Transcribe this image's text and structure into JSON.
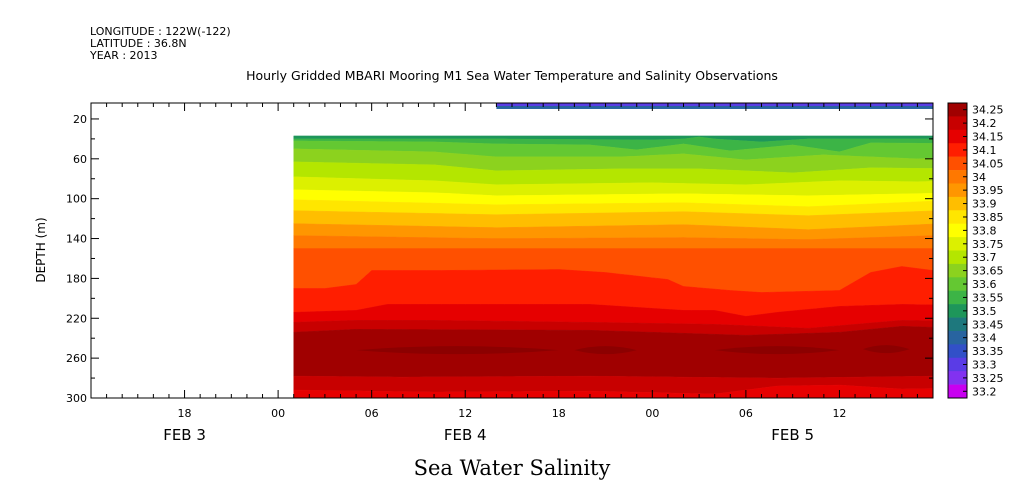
{
  "header": {
    "longitude": "LONGITUDE : 122W(-122)",
    "latitude": "LATITUDE : 36.8N",
    "year": "YEAR : 2013"
  },
  "chart_data": {
    "type": "heatmap",
    "title": "Hourly Gridded MBARI Mooring M1 Sea Water Temperature and Salinity Observations",
    "variable_name": "Sea Water Salinity",
    "ylabel": "DEPTH (m)",
    "y_ticks": [
      20,
      60,
      100,
      140,
      180,
      220,
      260,
      300
    ],
    "ylim": [
      300,
      4
    ],
    "y_reversed": true,
    "x_axis": {
      "start": "2013-02-03T12:00",
      "end": "2013-02-05T18:00",
      "tick_labels": [
        "18",
        "00",
        "06",
        "12",
        "18",
        "00",
        "06",
        "12"
      ],
      "tick_times": [
        "2013-02-03T18:00",
        "2013-02-04T00:00",
        "2013-02-04T06:00",
        "2013-02-04T12:00",
        "2013-02-04T18:00",
        "2013-02-05T00:00",
        "2013-02-05T06:00",
        "2013-02-05T12:00"
      ],
      "date_labels": [
        "FEB  3",
        "FEB  4",
        "FEB  5"
      ],
      "date_label_times": [
        "2013-02-03T18:00",
        "2013-02-04T12:00",
        "2013-02-05T09:00"
      ]
    },
    "colorbar": {
      "levels": [
        34.25,
        34.2,
        34.15,
        34.1,
        34.05,
        34,
        33.95,
        33.9,
        33.85,
        33.8,
        33.75,
        33.7,
        33.65,
        33.6,
        33.55,
        33.5,
        33.45,
        33.4,
        33.35,
        33.3,
        33.25,
        33.2
      ],
      "labels": [
        "34.25",
        "34.2",
        "34.15",
        "34.1",
        "34.05",
        "34",
        "33.95",
        "33.9",
        "33.85",
        "33.8",
        "33.75",
        "33.7",
        "33.65",
        "33.6",
        "33.55",
        "33.5",
        "33.45",
        "33.4",
        "33.35",
        "33.3",
        "33.25",
        "33.2"
      ],
      "colors": [
        "#a00000",
        "#c80000",
        "#e60000",
        "#ff1e00",
        "#ff5000",
        "#ff7800",
        "#ff9600",
        "#ffbe00",
        "#ffe600",
        "#ffff00",
        "#dcf000",
        "#b4e600",
        "#8cd21e",
        "#64c832",
        "#3cb446",
        "#1e965a",
        "#1e787d",
        "#2864a0",
        "#3250c8",
        "#5a3ce6",
        "#8232f0",
        "#c800f0"
      ]
    },
    "data_start": "2013-02-04T01:00",
    "surface_band": {
      "start": "2013-02-04T14:00",
      "end": "2013-02-05T18:00",
      "depth_range": [
        4,
        10
      ],
      "value_range": [
        33.3,
        33.45
      ]
    },
    "contour_depths": [
      {
        "boundary": "33.55",
        "values": [
          [
            1,
            40
          ],
          [
            14,
            40
          ],
          [
            24,
            41
          ],
          [
            26,
            40
          ],
          [
            27,
            38
          ],
          [
            28,
            40
          ],
          [
            31,
            43
          ],
          [
            34,
            40
          ],
          [
            41,
            40
          ],
          [
            54,
            40
          ]
        ]
      },
      {
        "boundary": "33.6",
        "values": [
          [
            1,
            42
          ],
          [
            10,
            43
          ],
          [
            14,
            45
          ],
          [
            20,
            46
          ],
          [
            23,
            51
          ],
          [
            26,
            45
          ],
          [
            29,
            52
          ],
          [
            33,
            46
          ],
          [
            36,
            53
          ],
          [
            38,
            44
          ],
          [
            48,
            45
          ],
          [
            54,
            42
          ]
        ]
      },
      {
        "boundary": "33.65",
        "values": [
          [
            1,
            50
          ],
          [
            10,
            53
          ],
          [
            14,
            58
          ],
          [
            22,
            58
          ],
          [
            26,
            55
          ],
          [
            30,
            61
          ],
          [
            35,
            56
          ],
          [
            41,
            60
          ],
          [
            48,
            56
          ],
          [
            54,
            52
          ]
        ]
      },
      {
        "boundary": "33.7",
        "values": [
          [
            1,
            63
          ],
          [
            10,
            66
          ],
          [
            14,
            72
          ],
          [
            22,
            70
          ],
          [
            27,
            70
          ],
          [
            33,
            74
          ],
          [
            38,
            69
          ],
          [
            44,
            70
          ],
          [
            48,
            66
          ],
          [
            54,
            64
          ]
        ]
      },
      {
        "boundary": "33.75",
        "values": [
          [
            1,
            78
          ],
          [
            10,
            82
          ],
          [
            14,
            86
          ],
          [
            24,
            84
          ],
          [
            30,
            86
          ],
          [
            36,
            82
          ],
          [
            41,
            83
          ],
          [
            48,
            80
          ],
          [
            54,
            78
          ]
        ]
      },
      {
        "boundary": "33.8",
        "values": [
          [
            1,
            91
          ],
          [
            10,
            94
          ],
          [
            14,
            97
          ],
          [
            26,
            95
          ],
          [
            34,
            97
          ],
          [
            44,
            94
          ],
          [
            54,
            91
          ]
        ]
      },
      {
        "boundary": "33.85",
        "values": [
          [
            1,
            101
          ],
          [
            14,
            106
          ],
          [
            26,
            104
          ],
          [
            34,
            108
          ],
          [
            44,
            101
          ],
          [
            54,
            103
          ]
        ]
      },
      {
        "boundary": "33.9",
        "values": [
          [
            1,
            112
          ],
          [
            14,
            116
          ],
          [
            26,
            113
          ],
          [
            34,
            117
          ],
          [
            44,
            111
          ],
          [
            54,
            114
          ]
        ]
      },
      {
        "boundary": "33.95",
        "values": [
          [
            1,
            125
          ],
          [
            14,
            129
          ],
          [
            26,
            126
          ],
          [
            34,
            131
          ],
          [
            44,
            124
          ],
          [
            54,
            127
          ]
        ]
      },
      {
        "boundary": "34",
        "values": [
          [
            1,
            137
          ],
          [
            14,
            140
          ],
          [
            26,
            139
          ],
          [
            34,
            141
          ],
          [
            44,
            136
          ],
          [
            54,
            138
          ]
        ]
      },
      {
        "boundary": "34.05",
        "values": [
          [
            1,
            150
          ],
          [
            20,
            150
          ],
          [
            34,
            150
          ],
          [
            54,
            150
          ]
        ]
      },
      {
        "boundary": "34.1",
        "values": [
          [
            1,
            190
          ],
          [
            3,
            190
          ],
          [
            5,
            186
          ],
          [
            6,
            172
          ],
          [
            10,
            172
          ],
          [
            18,
            171
          ],
          [
            21,
            174
          ],
          [
            25,
            181
          ],
          [
            26,
            188
          ],
          [
            29,
            192
          ],
          [
            31,
            194
          ],
          [
            36,
            192
          ],
          [
            38,
            174
          ],
          [
            40,
            168
          ],
          [
            42,
            172
          ],
          [
            44,
            171
          ],
          [
            46,
            176
          ],
          [
            47,
            176
          ],
          [
            48,
            190
          ],
          [
            50,
            190
          ],
          [
            51,
            186
          ],
          [
            54,
            180
          ]
        ]
      },
      {
        "boundary": "34.15",
        "values": [
          [
            1,
            214
          ],
          [
            5,
            212
          ],
          [
            7,
            206
          ],
          [
            14,
            206
          ],
          [
            20,
            206
          ],
          [
            26,
            212
          ],
          [
            28,
            212
          ],
          [
            30,
            218
          ],
          [
            32,
            214
          ],
          [
            36,
            208
          ],
          [
            40,
            206
          ],
          [
            44,
            207
          ],
          [
            48,
            210
          ],
          [
            50,
            214
          ],
          [
            52,
            210
          ],
          [
            54,
            212
          ]
        ]
      },
      {
        "boundary": "34.2",
        "values": [
          [
            1,
            224
          ],
          [
            5,
            222
          ],
          [
            10,
            222
          ],
          [
            20,
            224
          ],
          [
            28,
            226
          ],
          [
            34,
            230
          ],
          [
            40,
            222
          ],
          [
            48,
            224
          ],
          [
            54,
            226
          ]
        ]
      },
      {
        "boundary": "34.25",
        "values": [
          [
            1,
            234
          ],
          [
            5,
            231
          ],
          [
            20,
            232
          ],
          [
            30,
            237
          ],
          [
            36,
            234
          ],
          [
            40,
            228
          ],
          [
            48,
            232
          ],
          [
            54,
            236
          ]
        ]
      },
      {
        "boundary": "34.2 lower",
        "values": [
          [
            1,
            278
          ],
          [
            8,
            279
          ],
          [
            20,
            278
          ],
          [
            32,
            280
          ],
          [
            42,
            278
          ],
          [
            54,
            279
          ]
        ]
      },
      {
        "boundary": "34.15 lower",
        "values": [
          [
            1,
            292
          ],
          [
            10,
            294
          ],
          [
            20,
            293
          ],
          [
            28,
            296
          ],
          [
            32,
            288
          ],
          [
            36,
            287
          ],
          [
            40,
            291
          ],
          [
            48,
            289
          ],
          [
            52,
            293
          ],
          [
            54,
            289
          ]
        ]
      }
    ],
    "core_patches": [
      {
        "value": ">34.25",
        "time_range": [
          "2013-02-04T05:00",
          "2013-02-04T18:00"
        ],
        "depth": 252
      },
      {
        "value": ">34.25",
        "time_range": [
          "2013-02-04T19:00",
          "2013-02-04T23:00"
        ],
        "depth": 252
      },
      {
        "value": ">34.25",
        "time_range": [
          "2013-02-05T04:00",
          "2013-02-05T12:00"
        ],
        "depth": 252
      },
      {
        "value": ">34.25",
        "time_range": [
          "2013-02-05T13:30",
          "2013-02-05T16:30"
        ],
        "depth": 251
      }
    ]
  }
}
